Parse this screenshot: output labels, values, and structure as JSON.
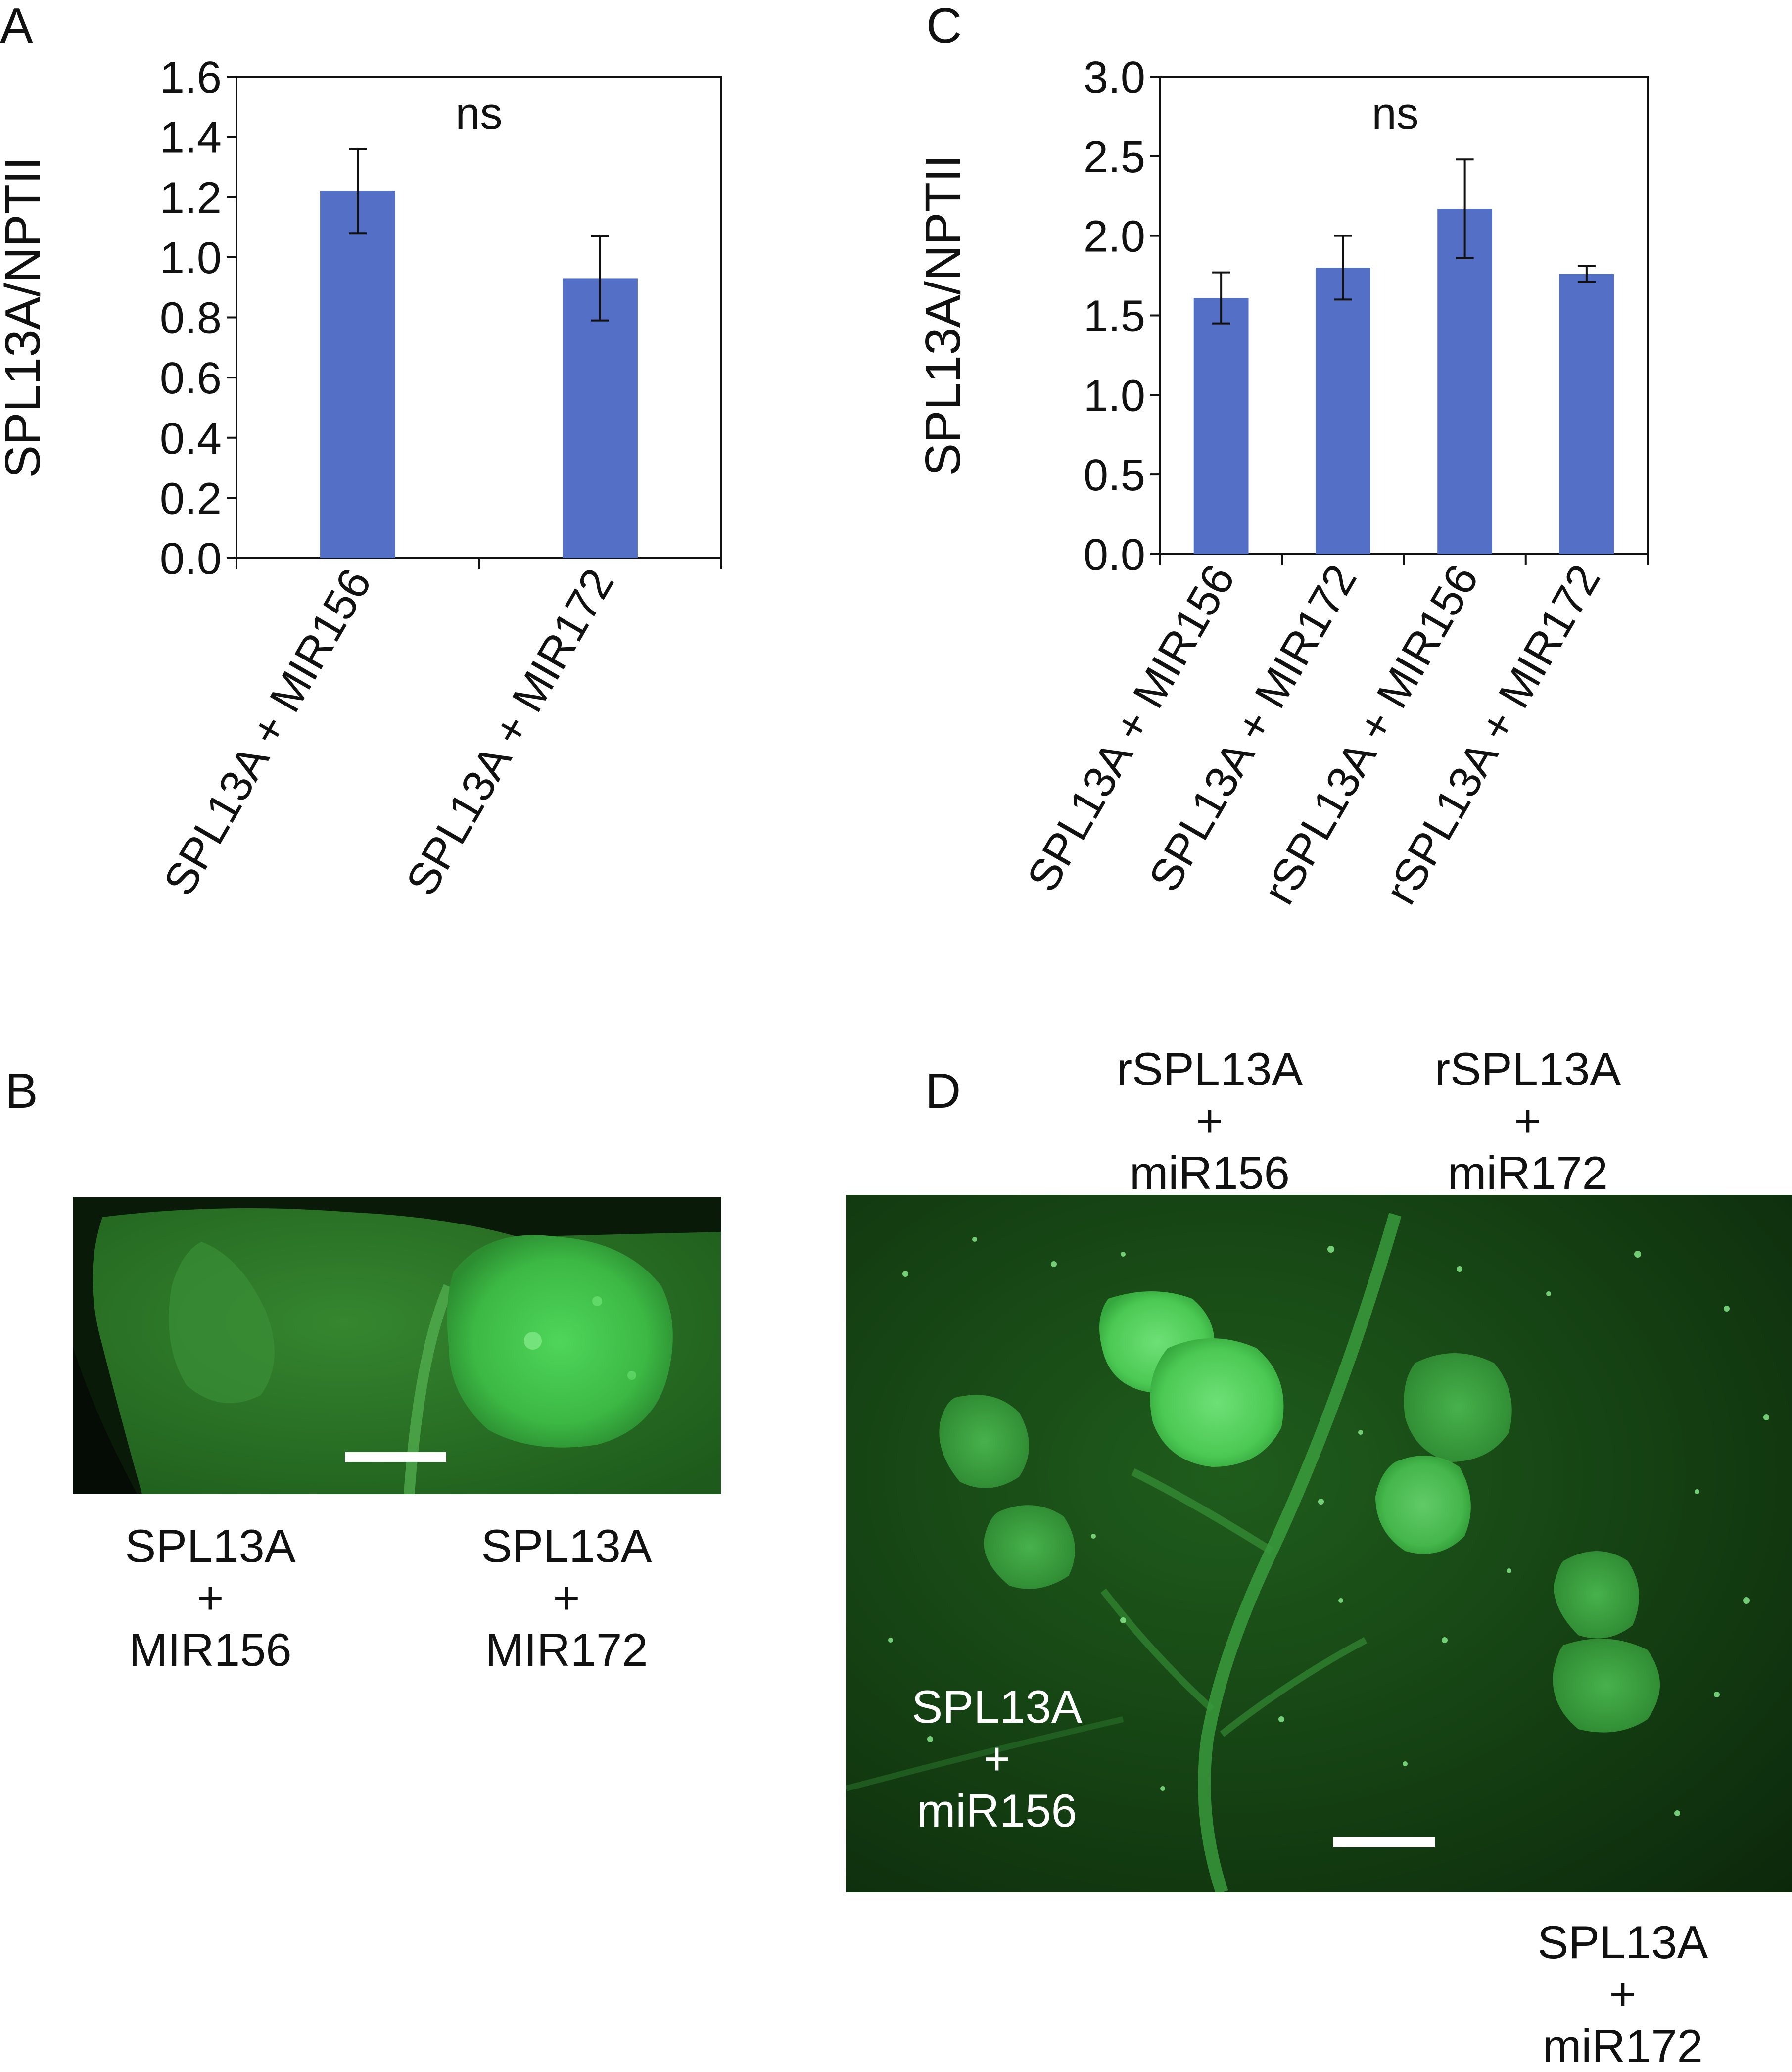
{
  "panels": {
    "a": "A",
    "b": "B",
    "c": "C",
    "d": "D"
  },
  "chart_data": [
    {
      "panel": "A",
      "type": "bar",
      "ylabel": "SPL13A/NPTII",
      "ylim": [
        0,
        1.6
      ],
      "yticks": [
        "0.0",
        "0.2",
        "0.4",
        "0.6",
        "0.8",
        "1.0",
        "1.2",
        "1.4",
        "1.6"
      ],
      "categories": [
        "SPL13A + MIR156",
        "SPL13A + MIR172"
      ],
      "values": [
        1.22,
        0.93
      ],
      "errors": [
        0.14,
        0.14
      ],
      "annotation": "ns",
      "bar_color": "#5470c6"
    },
    {
      "panel": "C",
      "type": "bar",
      "ylabel": "SPL13A/NPTII",
      "ylim": [
        0,
        3.0
      ],
      "yticks": [
        "0.0",
        "0.5",
        "1.0",
        "1.5",
        "2.0",
        "2.5",
        "3.0"
      ],
      "categories": [
        "SPL13A + MIR156",
        "SPL13A + MIR172",
        "rSPL13A + MIR156",
        "rSPL13A + MIR172"
      ],
      "values": [
        1.61,
        1.8,
        2.17,
        1.76
      ],
      "errors": [
        0.16,
        0.2,
        0.31,
        0.05
      ],
      "annotation": "ns",
      "bar_color": "#5470c6"
    }
  ],
  "photo_b": {
    "captions": [
      [
        "SPL13A",
        "+",
        "MIR156"
      ],
      [
        "SPL13A",
        "+",
        "MIR172"
      ]
    ]
  },
  "photo_d": {
    "top_captions": [
      [
        "rSPL13A",
        "+",
        "miR156"
      ],
      [
        "rSPL13A",
        "+",
        "miR172"
      ]
    ],
    "inset_caption": [
      "SPL13A",
      "+",
      "miR156"
    ],
    "bottom_caption": [
      "SPL13A",
      "+",
      "miR172"
    ]
  },
  "colors": {
    "bar": "#5470c6",
    "fluorescence": "#35c23d",
    "background_dark": "#0d2a0c"
  }
}
